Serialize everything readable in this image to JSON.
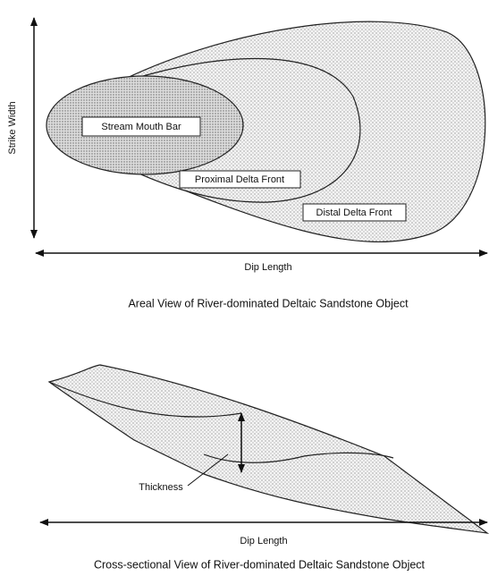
{
  "areal_view": {
    "y_axis_label": "Strike Width",
    "zones": [
      "Stream Mouth Bar",
      "Proximal Delta Front",
      "Distal Delta Front"
    ],
    "x_axis_label": "Dip Length",
    "caption": "Areal View of River-dominated Deltaic Sandstone Object"
  },
  "cross_section": {
    "thickness_label": "Thickness",
    "x_axis_label": "Dip Length",
    "caption": "Cross-sectional View of River-dominated Deltaic Sandstone Object"
  }
}
